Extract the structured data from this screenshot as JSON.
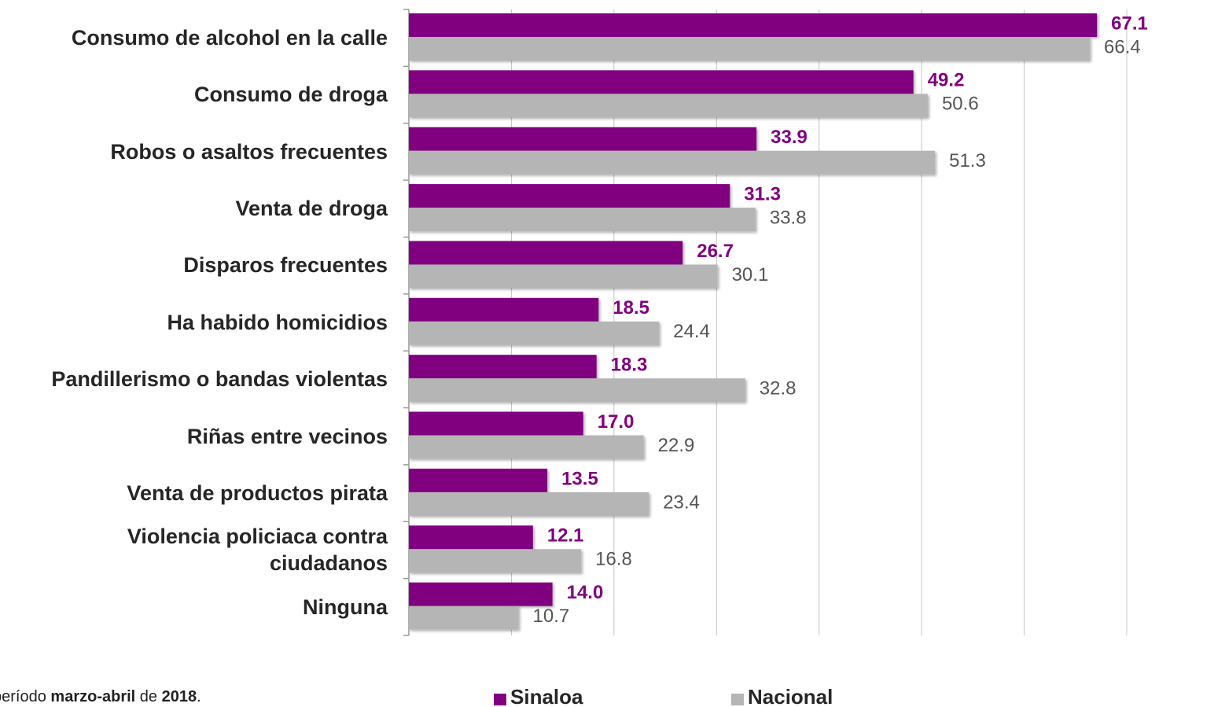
{
  "chart_data": {
    "type": "bar",
    "orientation": "horizontal",
    "categories": [
      "Consumo de alcohol en la calle",
      "Consumo de droga",
      "Robos o asaltos frecuentes",
      "Venta de droga",
      "Disparos frecuentes",
      "Ha habido homicidios",
      "Pandillerismo o bandas violentas",
      "Riñas entre vecinos",
      "Venta de productos pirata",
      "Violencia policiaca contra ciudadanos",
      "Ninguna"
    ],
    "series": [
      {
        "name": "Sinaloa",
        "color": "#800080",
        "label_color": "#800080",
        "values": [
          67.1,
          49.2,
          33.9,
          31.3,
          26.7,
          18.5,
          18.3,
          17.0,
          13.5,
          12.1,
          14.0
        ],
        "value_labels": [
          "67.1",
          "49.2",
          "33.9",
          "31.3",
          "26.7",
          "18.5",
          "18.3",
          "17.0",
          "13.5",
          "12.1",
          "14.0"
        ]
      },
      {
        "name": "Nacional",
        "color": "#b5b5b5",
        "label_color": "#555555",
        "values": [
          66.4,
          50.6,
          51.3,
          33.8,
          30.1,
          24.4,
          32.8,
          22.9,
          23.4,
          16.8,
          10.7
        ],
        "value_labels": [
          "66.4",
          "50.6",
          "51.3",
          "33.8",
          "30.1",
          "24.4",
          "32.8",
          "22.9",
          "23.4",
          "16.8",
          "10.7"
        ]
      }
    ],
    "xlim": [
      0,
      70
    ],
    "xticks": [
      0,
      10,
      20,
      30,
      40,
      50,
      60,
      70
    ],
    "grid": true,
    "legend": "bottom",
    "footnote": [
      "período",
      "marzo-abril",
      "de",
      "2018",
      "."
    ]
  }
}
